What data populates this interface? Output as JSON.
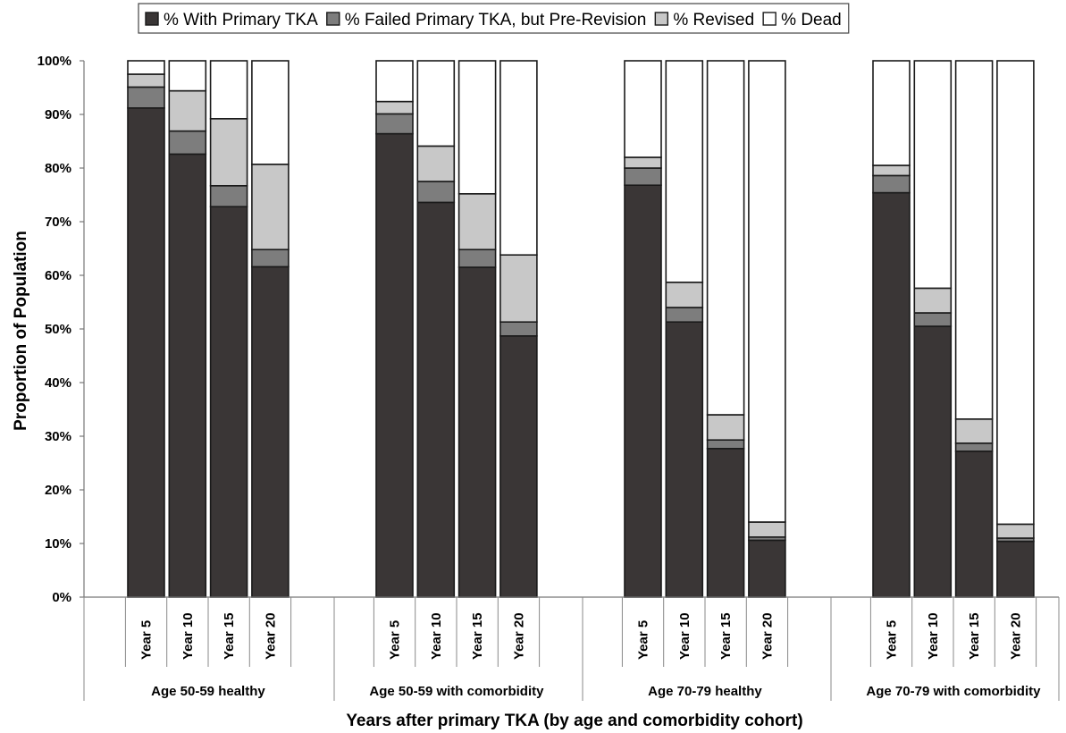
{
  "chart_data": {
    "type": "bar",
    "stacked": true,
    "percent_stacked": true,
    "xlabel": "Years after primary TKA (by age and comorbidity cohort)",
    "ylabel": "Proportion of Population",
    "ylim": [
      0,
      100
    ],
    "yticks": [
      "0%",
      "10%",
      "20%",
      "30%",
      "40%",
      "50%",
      "60%",
      "70%",
      "80%",
      "90%",
      "100%"
    ],
    "legend_position": "top",
    "groups": [
      {
        "label": "Age 50-59 healthy",
        "categories": [
          "Year 5",
          "Year 10",
          "Year 15",
          "Year 20"
        ]
      },
      {
        "label": "Age 50-59 with comorbidity",
        "categories": [
          "Year 5",
          "Year 10",
          "Year 15",
          "Year 20"
        ]
      },
      {
        "label": "Age 70-79 healthy",
        "categories": [
          "Year 5",
          "Year 10",
          "Year 15",
          "Year 20"
        ]
      },
      {
        "label": "Age 70-79 with comorbidity",
        "categories": [
          "Year 5",
          "Year 10",
          "Year 15",
          "Year 20"
        ]
      }
    ],
    "series": [
      {
        "name": "% With Primary TKA",
        "color": "#3a3636",
        "values": [
          91.2,
          82.6,
          72.8,
          61.6,
          86.4,
          73.6,
          61.5,
          48.7,
          76.8,
          51.3,
          27.7,
          10.6,
          75.4,
          50.5,
          27.2,
          10.4
        ]
      },
      {
        "name": "% Failed Primary TKA, but Pre-Revision",
        "color": "#7d7d7d",
        "values": [
          3.9,
          4.3,
          3.9,
          3.2,
          3.7,
          3.9,
          3.3,
          2.6,
          3.2,
          2.7,
          1.6,
          0.6,
          3.2,
          2.5,
          1.5,
          0.6
        ]
      },
      {
        "name": "% Revised",
        "color": "#c8c8c8",
        "values": [
          2.4,
          7.5,
          12.5,
          15.9,
          2.3,
          6.6,
          10.4,
          12.5,
          2.0,
          4.7,
          4.7,
          2.8,
          1.9,
          4.6,
          4.5,
          2.6
        ]
      },
      {
        "name": "% Dead",
        "color": "#ffffff",
        "values": [
          2.5,
          5.6,
          10.8,
          19.3,
          7.6,
          15.9,
          24.8,
          36.2,
          18.0,
          41.3,
          66.0,
          86.0,
          19.5,
          42.4,
          66.8,
          86.4
        ]
      }
    ]
  }
}
